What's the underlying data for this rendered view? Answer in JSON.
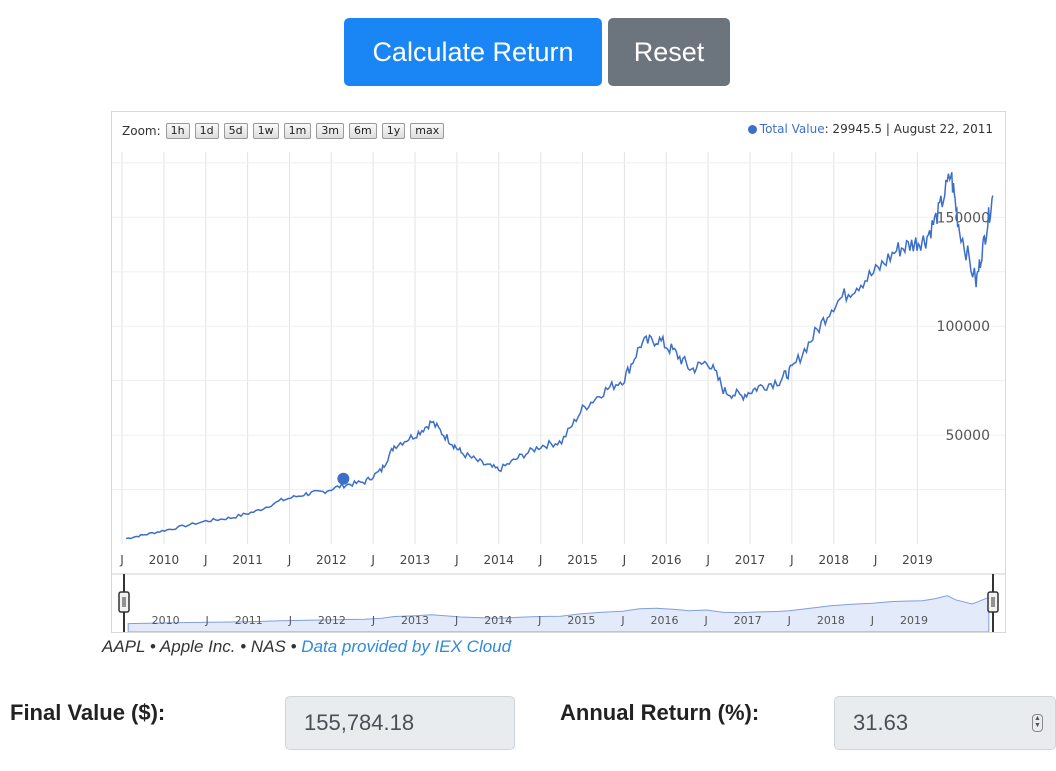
{
  "buttons": {
    "calculate_label": "Calculate Return",
    "reset_label": "Reset"
  },
  "colors": {
    "primary": "#1a86f5",
    "secondary": "#6c757d",
    "series": "#3d6fc8",
    "link": "#2f8ad8"
  },
  "chart": {
    "zoom_label": "Zoom:",
    "zoom_options": [
      "1h",
      "1d",
      "5d",
      "1w",
      "1m",
      "3m",
      "6m",
      "1y",
      "max"
    ],
    "legend": {
      "series_name": "Total Value",
      "value_text": ": 29945.5",
      "date_text": "| August 22, 2011"
    }
  },
  "chart_data": {
    "type": "line",
    "grid": true,
    "legend_placement": "top-right",
    "x_ticks": [
      "J",
      "2010",
      "J",
      "2011",
      "J",
      "2012",
      "J",
      "2013",
      "J",
      "2014",
      "J",
      "2015",
      "J",
      "2016",
      "J",
      "2017",
      "J",
      "2018",
      "J",
      "2019"
    ],
    "navigator_ticks": [
      "2010",
      "J",
      "2011",
      "J",
      "2012",
      "J",
      "2013",
      "J",
      "2014",
      "J",
      "2015",
      "J",
      "2016",
      "J",
      "2017",
      "J",
      "2018",
      "J",
      "2019"
    ],
    "y_ticks": [
      "50000",
      "100000",
      "150000"
    ],
    "ylim": [
      0,
      180000
    ],
    "highlight": {
      "date": "2011-08-22",
      "value": 29945.5
    },
    "series": [
      {
        "name": "Total Value",
        "x": [
          2009.05,
          2009.3,
          2009.6,
          2010.0,
          2010.3,
          2010.6,
          2010.9,
          2011.2,
          2011.4,
          2011.65,
          2011.9,
          2012.1,
          2012.25,
          2012.5,
          2012.7,
          2012.9,
          2013.05,
          2013.3,
          2013.5,
          2013.75,
          2014.0,
          2014.25,
          2014.5,
          2014.75,
          2015.0,
          2015.2,
          2015.4,
          2015.6,
          2015.8,
          2016.0,
          2016.2,
          2016.4,
          2016.6,
          2016.85,
          2017.0,
          2017.25,
          2017.5,
          2017.75,
          2018.0,
          2018.25,
          2018.45,
          2018.6,
          2018.75,
          2018.9,
          2019.0,
          2019.2,
          2019.3,
          2019.4
        ],
        "values": [
          2500,
          4500,
          7000,
          10500,
          12000,
          15000,
          20000,
          23000,
          24000,
          27000,
          28500,
          34000,
          45000,
          50000,
          56000,
          48000,
          42000,
          37000,
          34000,
          40000,
          45000,
          47000,
          62000,
          70000,
          76000,
          92000,
          94000,
          88000,
          80000,
          84000,
          70000,
          68000,
          72000,
          75000,
          80000,
          95000,
          110000,
          118000,
          125000,
          135000,
          138000,
          140000,
          152000,
          170000,
          145000,
          120000,
          140000,
          160000
        ]
      }
    ]
  },
  "credit": {
    "text": "AAPL • Apple Inc. • NAS • ",
    "link": "Data provided by IEX Cloud"
  },
  "results": {
    "final_label": "Final Value ($):",
    "final_value": "155,784.18",
    "annual_label": "Annual Return (%):",
    "annual_value": "31.63"
  }
}
